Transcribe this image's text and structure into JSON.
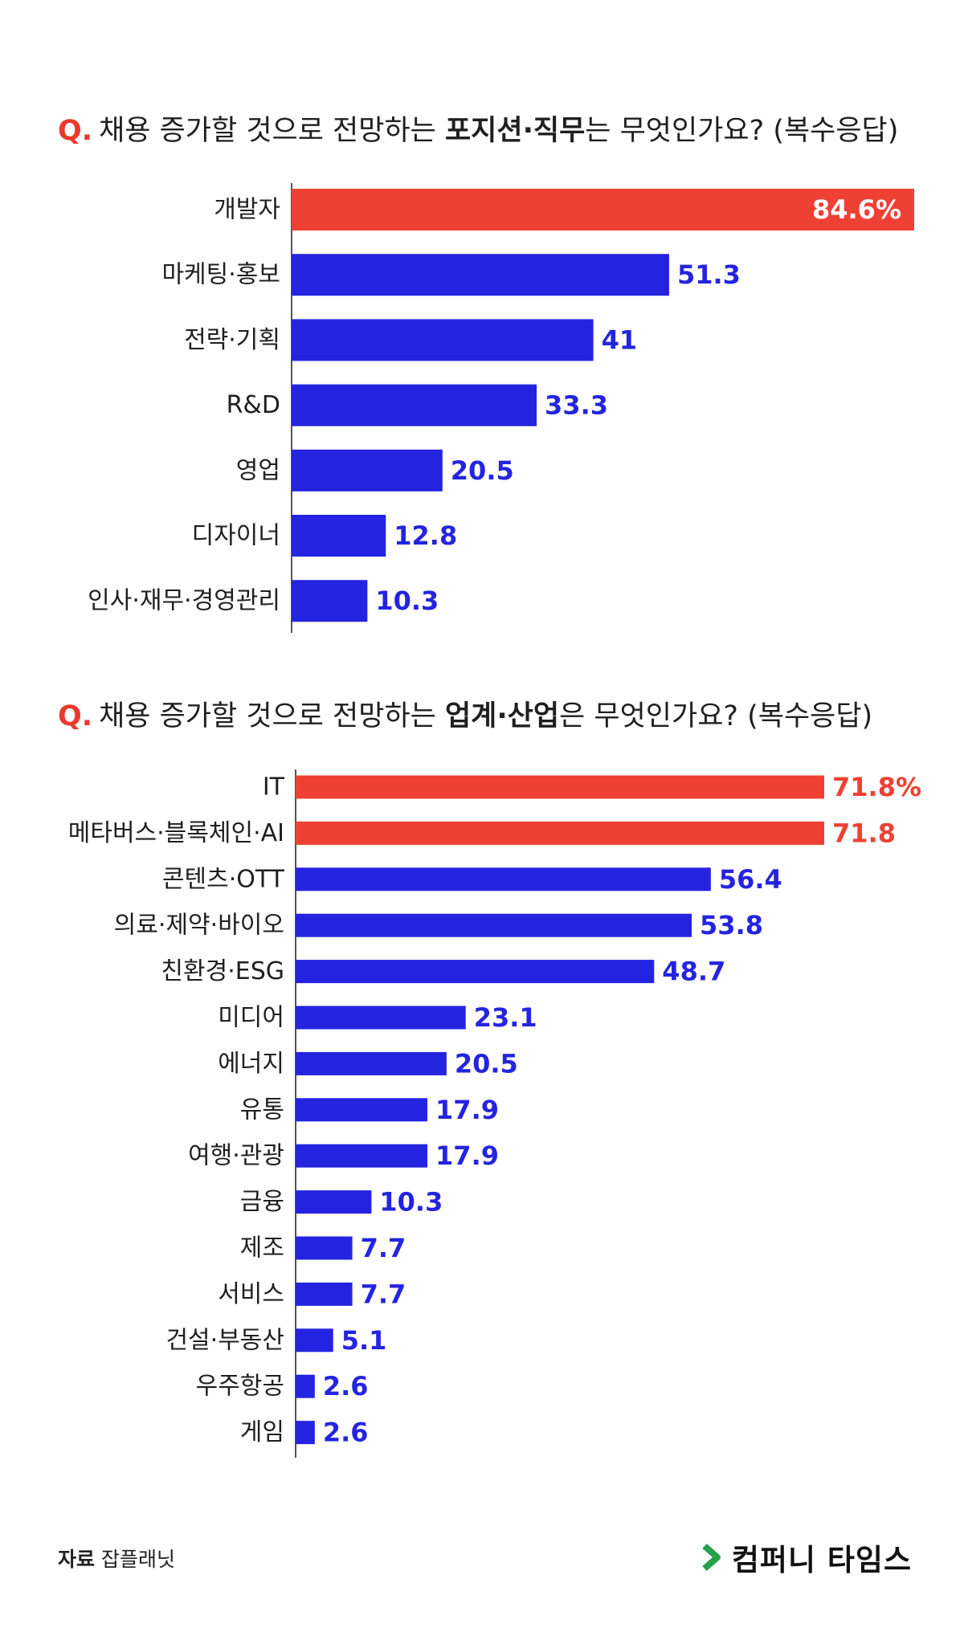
{
  "colors": {
    "highlight": "#ef4034",
    "bar": "#2424e0",
    "axis": "#555555",
    "logo_accent": "#24a14a"
  },
  "chart_data": [
    {
      "type": "bar",
      "orientation": "horizontal",
      "title_prefix": "Q.",
      "title_parts": [
        "채용 증가할 것으로 전망하는 ",
        "포지션·직무",
        "는 무엇인가요? (복수응답)"
      ],
      "categories": [
        "개발자",
        "마케팅·홍보",
        "전략·기획",
        "R&D",
        "영업",
        "디자이너",
        "인사·재무·경영관리"
      ],
      "values": [
        84.6,
        51.3,
        41,
        33.3,
        20.5,
        12.8,
        10.3
      ],
      "value_labels": [
        "84.6%",
        "51.3",
        "41",
        "33.3",
        "20.5",
        "12.8",
        "10.3"
      ],
      "highlight": [
        true,
        false,
        false,
        false,
        false,
        false,
        false
      ],
      "xlim": [
        0,
        84.6
      ],
      "grid": false,
      "legend": "none"
    },
    {
      "type": "bar",
      "orientation": "horizontal",
      "title_prefix": "Q.",
      "title_parts": [
        "채용 증가할 것으로 전망하는 ",
        "업계·산업",
        "은 무엇인가요? (복수응답)"
      ],
      "categories": [
        "IT",
        "메타버스·블록체인·AI",
        "콘텐츠·OTT",
        "의료·제약·바이오",
        "친환경·ESG",
        "미디어",
        "에너지",
        "유통",
        "여행·관광",
        "금융",
        "제조",
        "서비스",
        "건설·부동산",
        "우주항공",
        "게임"
      ],
      "values": [
        71.8,
        71.8,
        56.4,
        53.8,
        48.7,
        23.1,
        20.5,
        17.9,
        17.9,
        10.3,
        7.7,
        7.7,
        5.1,
        2.6,
        2.6
      ],
      "value_labels": [
        "71.8%",
        "71.8",
        "56.4",
        "53.8",
        "48.7",
        "23.1",
        "20.5",
        "17.9",
        "17.9",
        "10.3",
        "7.7",
        "7.7",
        "5.1",
        "2.6",
        "2.6"
      ],
      "highlight": [
        true,
        true,
        false,
        false,
        false,
        false,
        false,
        false,
        false,
        false,
        false,
        false,
        false,
        false,
        false
      ],
      "xlim": [
        0,
        71.8
      ],
      "grid": false,
      "legend": "none"
    }
  ],
  "footer": {
    "source_key": "자료",
    "source_value": "잡플래닛",
    "logo_text": "컴퍼니 타임스"
  }
}
